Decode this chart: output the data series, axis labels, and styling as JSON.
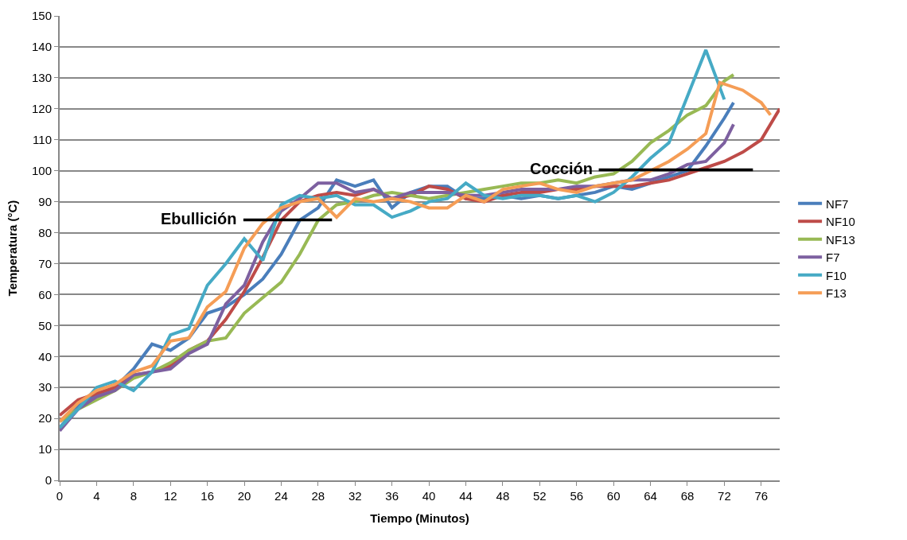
{
  "chart_data": {
    "type": "line",
    "xlabel": "Tiempo (Minutos)",
    "ylabel": "Temperatura (°C)",
    "x": [
      0,
      2,
      4,
      6,
      8,
      10,
      12,
      14,
      16,
      18,
      20,
      22,
      24,
      26,
      28,
      30,
      32,
      34,
      36,
      38,
      40,
      42,
      44,
      46,
      48,
      50,
      52,
      54,
      56,
      58,
      60,
      62,
      64,
      66,
      68,
      70,
      72,
      73
    ],
    "series": [
      {
        "name": "NF7",
        "color": "#4a7ebb",
        "values": [
          17,
          24,
          28,
          30,
          36,
          44,
          42,
          46,
          54,
          56,
          60,
          65,
          73,
          84,
          88,
          97,
          95,
          97,
          88,
          93,
          95,
          95,
          91,
          91,
          92,
          91,
          92,
          91,
          92,
          93,
          95,
          94,
          96,
          98,
          100,
          108,
          117,
          122
        ]
      },
      {
        "name": "NF10",
        "color": "#be4b48",
        "x": [
          0,
          2,
          4,
          6,
          8,
          10,
          12,
          14,
          16,
          18,
          20,
          22,
          24,
          26,
          28,
          30,
          32,
          34,
          36,
          38,
          40,
          42,
          44,
          46,
          48,
          50,
          52,
          54,
          56,
          58,
          60,
          62,
          64,
          66,
          68,
          70,
          72,
          74,
          76,
          78
        ],
        "values": [
          21,
          26,
          28,
          30,
          34,
          35,
          37,
          42,
          45,
          52,
          61,
          72,
          84,
          90,
          92,
          93,
          92,
          94,
          91,
          92,
          95,
          94,
          91,
          90,
          92,
          93,
          93,
          94,
          94,
          95,
          95,
          95,
          96,
          97,
          99,
          101,
          103,
          106,
          110,
          120
        ]
      },
      {
        "name": "NF13",
        "color": "#98b954",
        "values": [
          19,
          23,
          26,
          29,
          33,
          35,
          38,
          42,
          45,
          46,
          54,
          59,
          64,
          73,
          84,
          89,
          90,
          92,
          93,
          92,
          91,
          92,
          93,
          94,
          95,
          96,
          96,
          97,
          96,
          98,
          99,
          103,
          109,
          113,
          118,
          121,
          129,
          131
        ]
      },
      {
        "name": "F7",
        "color": "#7d60a0",
        "values": [
          16,
          23,
          27,
          29,
          34,
          35,
          36,
          41,
          44,
          57,
          63,
          77,
          87,
          91,
          96,
          96,
          93,
          94,
          91,
          93,
          93,
          93,
          92,
          92,
          93,
          94,
          94,
          94,
          95,
          95,
          96,
          97,
          97,
          99,
          102,
          103,
          109,
          115
        ]
      },
      {
        "name": "F10",
        "color": "#46aac5",
        "x": [
          0,
          2,
          4,
          6,
          8,
          10,
          12,
          14,
          16,
          18,
          20,
          22,
          24,
          26,
          28,
          30,
          32,
          34,
          36,
          38,
          40,
          42,
          44,
          46,
          48,
          50,
          52,
          54,
          56,
          58,
          60,
          62,
          64,
          66,
          68,
          70,
          72
        ],
        "values": [
          17,
          23,
          30,
          32,
          29,
          35,
          47,
          49,
          63,
          70,
          78,
          71,
          89,
          92,
          91,
          92,
          89,
          89,
          85,
          87,
          90,
          91,
          96,
          92,
          91,
          92,
          92,
          91,
          92,
          90,
          93,
          98,
          104,
          109,
          124,
          139,
          123
        ]
      },
      {
        "name": "F13",
        "color": "#f59d56",
        "x": [
          0,
          2,
          4,
          6,
          8,
          10,
          12,
          14,
          16,
          18,
          20,
          22,
          24,
          26,
          28,
          30,
          32,
          34,
          36,
          38,
          40,
          42,
          44,
          46,
          48,
          50,
          52,
          54,
          56,
          58,
          60,
          62,
          64,
          66,
          68,
          70,
          71.5,
          74,
          76,
          77
        ],
        "values": [
          19,
          25,
          29,
          31,
          35,
          37,
          45,
          46,
          56,
          61,
          75,
          83,
          88,
          90,
          91,
          85,
          91,
          90,
          91,
          90,
          88,
          88,
          92,
          90,
          94,
          95,
          96,
          94,
          93,
          95,
          96,
          97,
          100,
          103,
          107,
          112,
          128.5,
          126,
          122,
          118
        ]
      },
      {
        "type": "line",
        "color": "#000000",
        "x": [
          19.9,
          29.5
        ],
        "values": [
          84.1,
          84.1
        ]
      },
      {
        "type": "line",
        "color": "#000000",
        "x": [
          58.4,
          75.1
        ],
        "values": [
          100.3,
          100.3
        ]
      }
    ],
    "annotations": [
      {
        "text": "Ebullición",
        "x": 19.9,
        "y": 84.1
      },
      {
        "text": "Cocción",
        "x": 58.4,
        "y": 100.3
      }
    ],
    "xlim": [
      0,
      78
    ],
    "xticks": [
      0,
      4,
      8,
      12,
      16,
      20,
      24,
      28,
      32,
      36,
      40,
      44,
      48,
      52,
      56,
      60,
      64,
      68,
      72,
      76
    ],
    "ylim": [
      0,
      150
    ],
    "yticks": [
      0,
      10,
      20,
      30,
      40,
      50,
      60,
      70,
      80,
      90,
      100,
      110,
      120,
      130,
      140,
      150
    ],
    "grid": "y",
    "legend": "right"
  }
}
